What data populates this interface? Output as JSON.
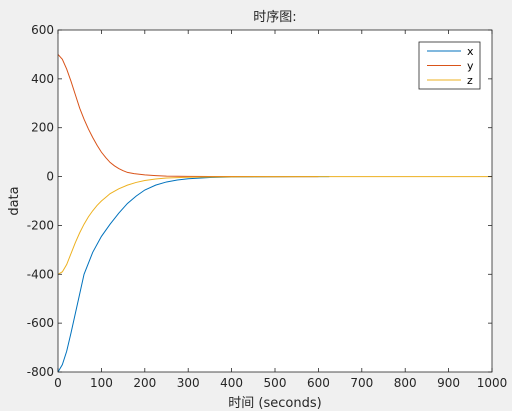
{
  "chart_data": {
    "type": "line",
    "title": "时序图:",
    "xlabel": "时间 (seconds)",
    "ylabel": "data",
    "xlim": [
      0,
      1000
    ],
    "ylim": [
      -800,
      600
    ],
    "xticks": [
      0,
      100,
      200,
      300,
      400,
      500,
      600,
      700,
      800,
      900,
      1000
    ],
    "yticks": [
      -800,
      -600,
      -400,
      -200,
      0,
      200,
      400,
      600
    ],
    "grid": false,
    "legend": {
      "location": "top-right"
    },
    "series": [
      {
        "name": "x",
        "color": "#0072bd",
        "x": [
          0,
          10,
          20,
          30,
          40,
          50,
          60,
          80,
          100,
          120,
          140,
          160,
          180,
          200,
          225,
          250,
          275,
          300,
          350,
          400,
          450,
          500,
          550,
          625
        ],
        "y": [
          -800,
          -770,
          -715,
          -640,
          -560,
          -480,
          -400,
          -310,
          -245,
          -195,
          -150,
          -110,
          -80,
          -55,
          -35,
          -22,
          -14,
          -9,
          -4,
          -2,
          -1,
          -0.5,
          -0.3,
          0
        ]
      },
      {
        "name": "y",
        "color": "#d95319",
        "x": [
          0,
          10,
          20,
          30,
          40,
          50,
          60,
          70,
          80,
          90,
          100,
          110,
          120,
          130,
          140,
          150,
          160,
          175,
          200,
          225,
          250,
          300,
          350,
          400,
          500,
          600
        ],
        "y": [
          500,
          480,
          440,
          390,
          335,
          280,
          235,
          195,
          160,
          128,
          100,
          78,
          58,
          44,
          33,
          24,
          17,
          12,
          7,
          4,
          2,
          1,
          0.5,
          0.2,
          0,
          0
        ]
      },
      {
        "name": "z",
        "color": "#edb120",
        "x": [
          0,
          10,
          20,
          30,
          40,
          50,
          60,
          70,
          80,
          90,
          100,
          110,
          120,
          140,
          160,
          180,
          200,
          225,
          250,
          300,
          350,
          400,
          500,
          600,
          700,
          800,
          900,
          1000
        ],
        "y": [
          -400,
          -390,
          -360,
          -315,
          -270,
          -230,
          -195,
          -165,
          -140,
          -118,
          -100,
          -85,
          -70,
          -50,
          -35,
          -24,
          -16,
          -10,
          -6,
          -3,
          -1.5,
          -1,
          -0.5,
          -0.3,
          -0.2,
          -0.1,
          0,
          0
        ]
      }
    ]
  }
}
